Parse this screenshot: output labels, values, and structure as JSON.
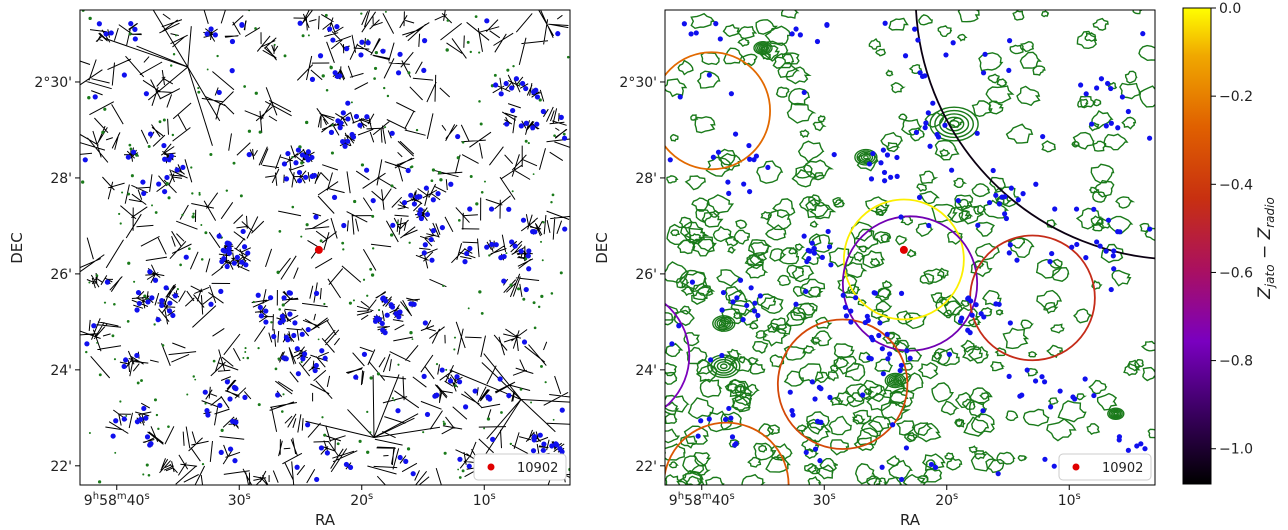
{
  "chart_data": [
    {
      "type": "scatter",
      "panel": "left",
      "title": "",
      "xlabel": "RA",
      "ylabel": "DEC",
      "x_ticks": [
        {
          "value_s": 40,
          "label": "9h58m40s"
        },
        {
          "value_s": 30,
          "label": "30s"
        },
        {
          "value_s": 20,
          "label": "20s"
        },
        {
          "value_s": 10,
          "label": "10s"
        }
      ],
      "y_ticks": [
        {
          "value_arcmin": 30,
          "label": "2°30'"
        },
        {
          "value_arcmin": 28,
          "label": "28'"
        },
        {
          "value_arcmin": 26,
          "label": "26'"
        },
        {
          "value_arcmin": 24,
          "label": "24'"
        },
        {
          "value_arcmin": 22,
          "label": "22'"
        }
      ],
      "xlim_s": [
        43,
        3
      ],
      "ylim_arcmin": [
        21.6,
        31.5
      ],
      "overlays": [
        "voronoi-tessellation",
        "green-contours",
        "blue-galaxies"
      ],
      "highlight": {
        "label": "10902",
        "ra_s": 23.5,
        "dec_arcmin": 26.5,
        "color": "#e00000"
      },
      "legend": {
        "position": "bottom-right",
        "entries": [
          "10902"
        ]
      },
      "grid": false
    },
    {
      "type": "scatter",
      "panel": "right",
      "title": "",
      "xlabel": "RA",
      "ylabel": "DEC",
      "x_ticks": [
        {
          "value_s": 40,
          "label": "9h58m40s"
        },
        {
          "value_s": 30,
          "label": "30s"
        },
        {
          "value_s": 20,
          "label": "20s"
        },
        {
          "value_s": 10,
          "label": "10s"
        }
      ],
      "y_ticks": [
        {
          "value_arcmin": 30,
          "label": "2°30'"
        },
        {
          "value_arcmin": 28,
          "label": "28'"
        },
        {
          "value_arcmin": 26,
          "label": "26'"
        },
        {
          "value_arcmin": 24,
          "label": "24'"
        },
        {
          "value_arcmin": 22,
          "label": "22'"
        }
      ],
      "xlim_s": [
        43,
        3
      ],
      "ylim_arcmin": [
        21.6,
        31.5
      ],
      "circles": [
        {
          "ra_s": 39.2,
          "dec_arcmin": 29.4,
          "r_arcmin": 1.22,
          "dz": -0.25
        },
        {
          "ra_s": 23.5,
          "dec_arcmin": 26.3,
          "r_arcmin": 1.25,
          "dz": -0.02
        },
        {
          "ra_s": 23.0,
          "dec_arcmin": 25.8,
          "r_arcmin": 1.4,
          "dz": -0.78
        },
        {
          "ra_s": 13.0,
          "dec_arcmin": 25.5,
          "r_arcmin": 1.3,
          "dz": -0.45
        },
        {
          "ra_s": 28.5,
          "dec_arcmin": 23.7,
          "r_arcmin": 1.35,
          "dz": -0.35
        },
        {
          "ra_s": 38.0,
          "dec_arcmin": 21.6,
          "r_arcmin": 1.3,
          "dz": -0.3
        },
        {
          "ra_s": 46.5,
          "dec_arcmin": 24.3,
          "r_arcmin": 1.4,
          "dz": -0.75
        },
        {
          "ra_s": 1.0,
          "dec_arcmin": 31.8,
          "r_arcmin": 5.5,
          "dz": -1.05
        }
      ],
      "highlight": {
        "label": "10902",
        "ra_s": 23.5,
        "dec_arcmin": 26.5,
        "color": "#e00000"
      },
      "legend": {
        "position": "bottom-right",
        "entries": [
          "10902"
        ]
      },
      "grid": false
    }
  ],
  "colorbar": {
    "label": "z_jato − z_radio",
    "label_main": "Z",
    "sub1": "jato",
    "sub2": "radio",
    "range": [
      -1.08,
      0.0
    ],
    "ticks": [
      {
        "value": 0.0,
        "label": "0.0"
      },
      {
        "value": -0.2,
        "label": "−0.2"
      },
      {
        "value": -0.4,
        "label": "−0.4"
      },
      {
        "value": -0.6,
        "label": "−0.6"
      },
      {
        "value": -0.8,
        "label": "−0.8"
      },
      {
        "value": -1.0,
        "label": "−1.0"
      }
    ],
    "colormap": "gnuplot"
  },
  "colors": {
    "points": "#1010ee",
    "contour": "#1a7a1a",
    "highlight": "#e00000",
    "edges": "#000000"
  }
}
